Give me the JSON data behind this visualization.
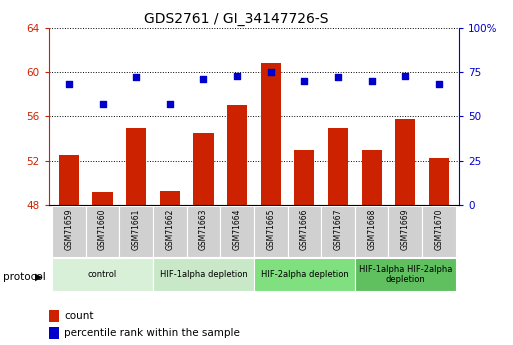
{
  "title": "GDS2761 / GI_34147726-S",
  "samples": [
    "GSM71659",
    "GSM71660",
    "GSM71661",
    "GSM71662",
    "GSM71663",
    "GSM71664",
    "GSM71665",
    "GSM71666",
    "GSM71667",
    "GSM71668",
    "GSM71669",
    "GSM71670"
  ],
  "bar_values": [
    52.5,
    49.2,
    55.0,
    49.3,
    54.5,
    57.0,
    60.8,
    53.0,
    55.0,
    53.0,
    55.8,
    52.3
  ],
  "dot_values_pct": [
    68,
    57,
    72,
    57,
    71,
    73,
    75,
    70,
    72,
    70,
    73,
    68
  ],
  "ylim_left": [
    48,
    64
  ],
  "ylim_right": [
    0,
    100
  ],
  "yticks_left": [
    48,
    52,
    56,
    60,
    64
  ],
  "yticks_right": [
    0,
    25,
    50,
    75,
    100
  ],
  "bar_color": "#cc2200",
  "dot_color": "#0000cc",
  "plot_bg": "#ffffff",
  "grid_color": "#000000",
  "protocol_groups": [
    {
      "label": "control",
      "start": 0,
      "end": 3,
      "color": "#d8f0d8"
    },
    {
      "label": "HIF-1alpha depletion",
      "start": 3,
      "end": 6,
      "color": "#c8e8c8"
    },
    {
      "label": "HIF-2alpha depletion",
      "start": 6,
      "end": 9,
      "color": "#80e080"
    },
    {
      "label": "HIF-1alpha HIF-2alpha\ndepletion",
      "start": 9,
      "end": 12,
      "color": "#60c060"
    }
  ],
  "legend_items": [
    {
      "label": "count",
      "color": "#cc2200"
    },
    {
      "label": "percentile rank within the sample",
      "color": "#0000cc"
    }
  ]
}
